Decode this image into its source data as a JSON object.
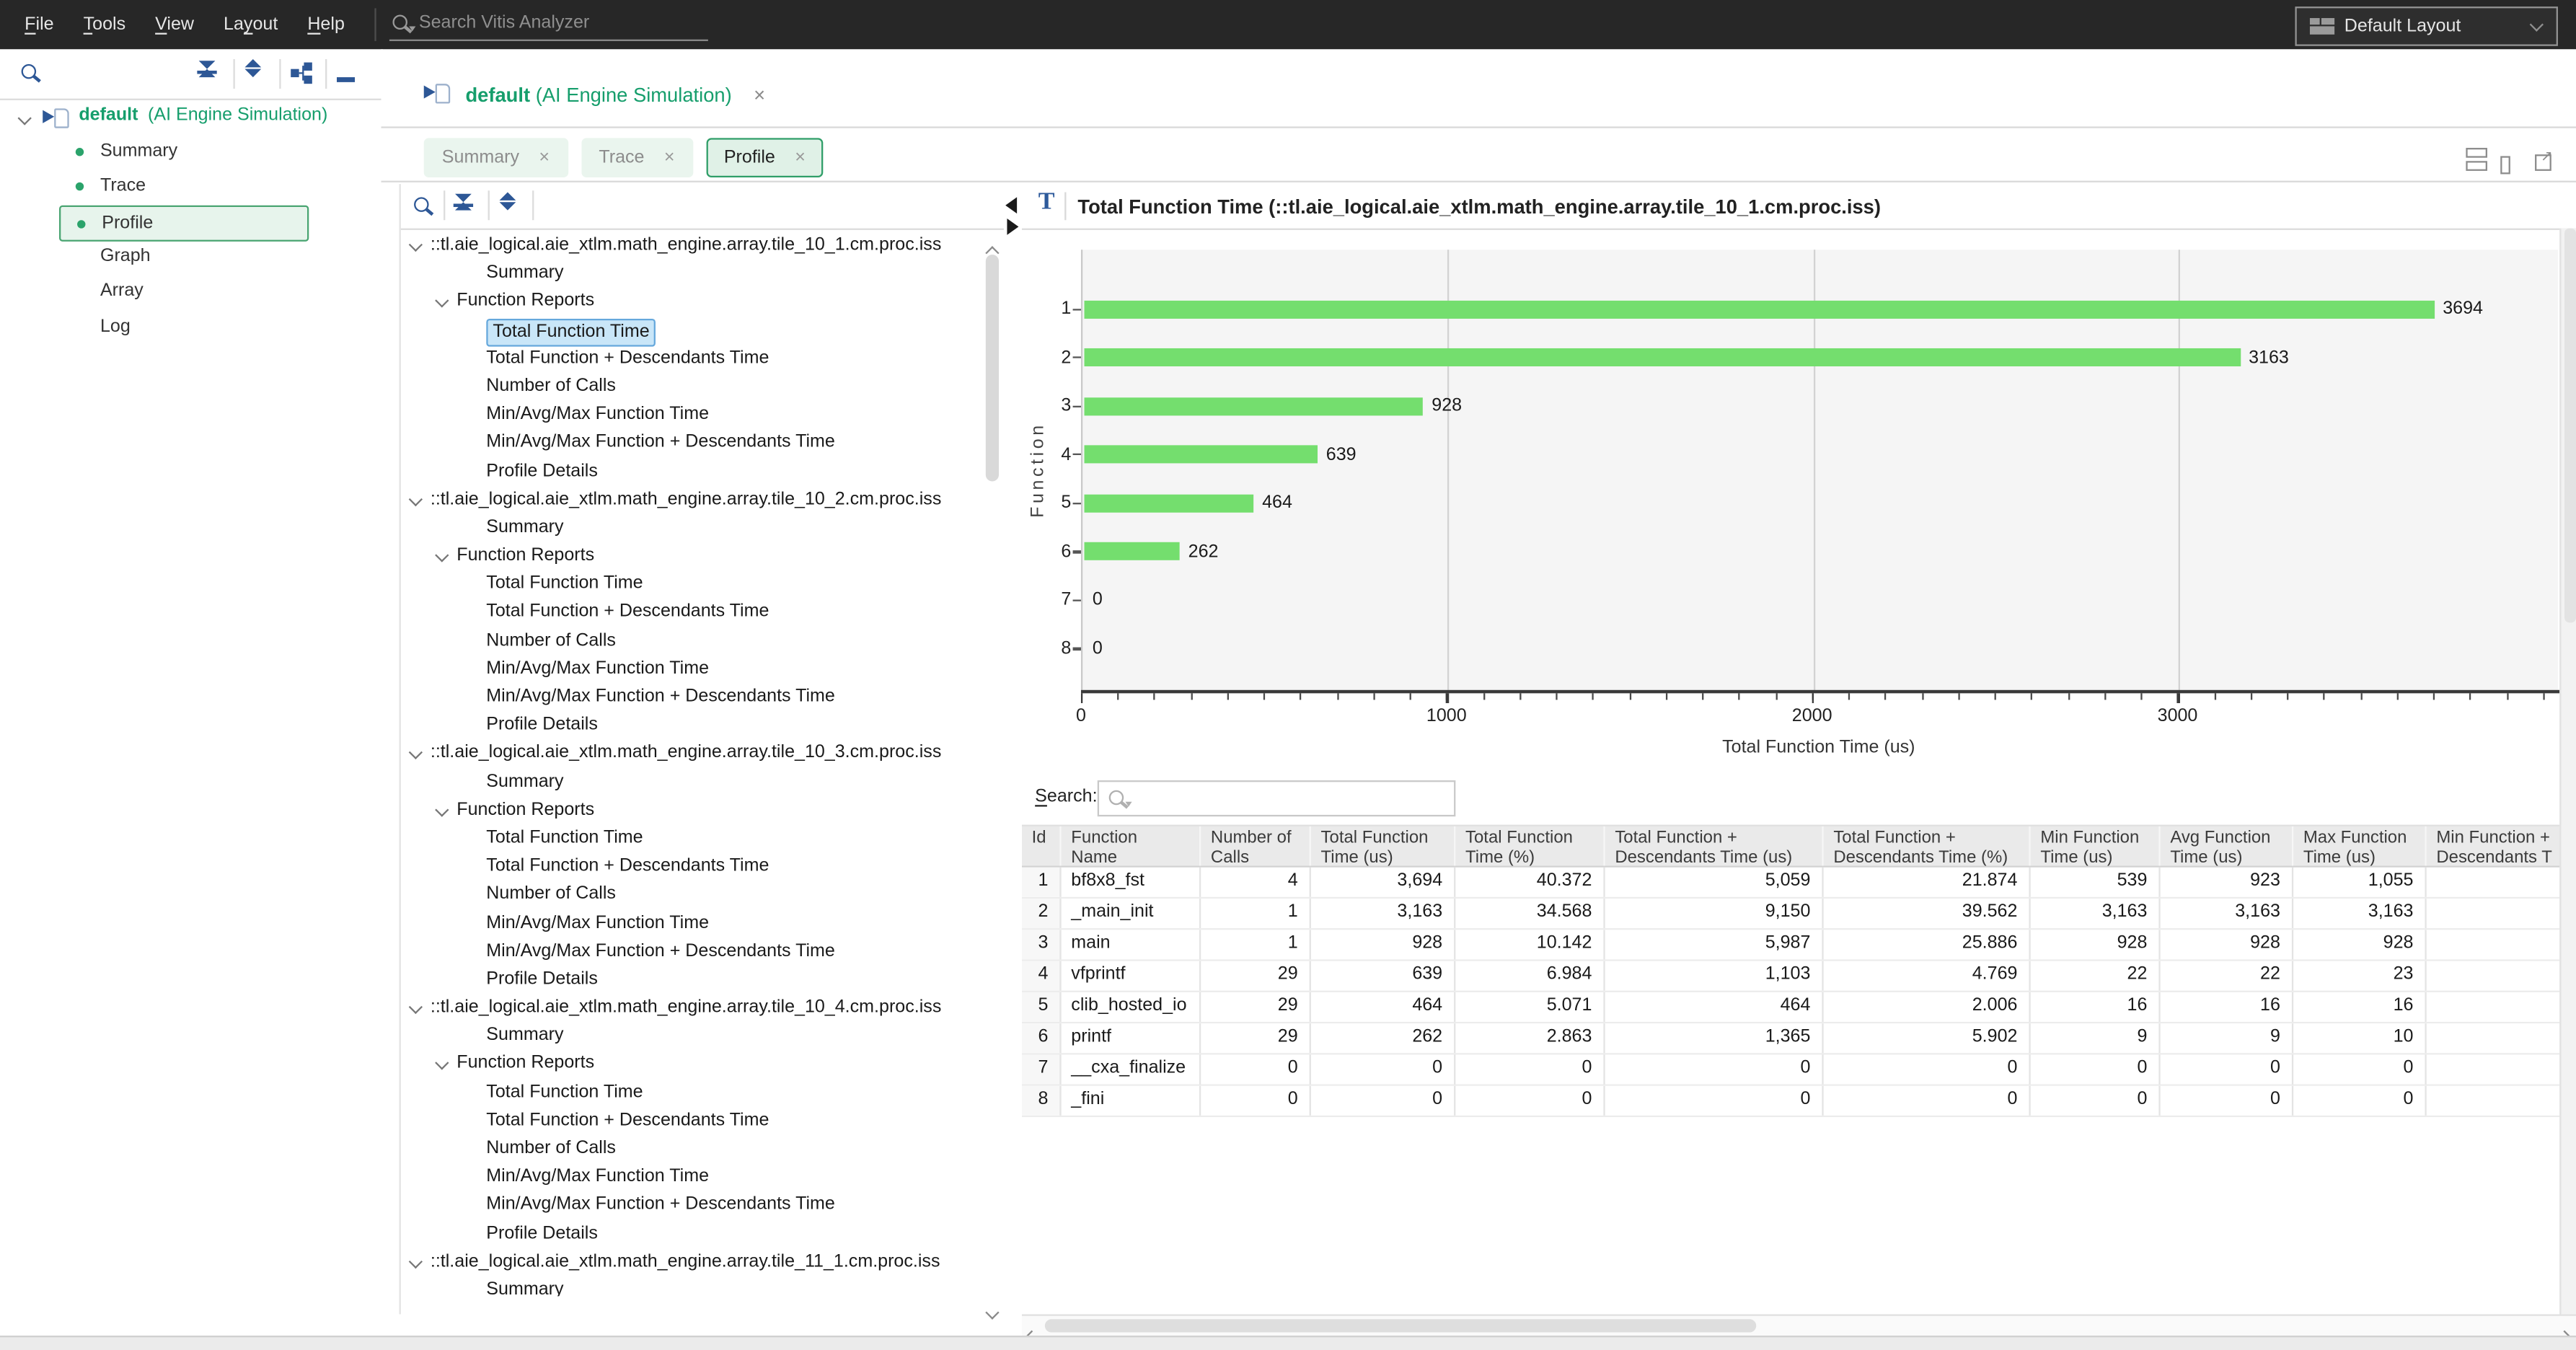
{
  "menu": {
    "items": [
      {
        "pre": "",
        "key": "F",
        "post": "ile"
      },
      {
        "pre": "",
        "key": "T",
        "post": "ools"
      },
      {
        "pre": "",
        "key": "V",
        "post": "iew"
      },
      {
        "pre": "La",
        "key": "y",
        "post": "out"
      },
      {
        "pre": "",
        "key": "H",
        "post": "elp"
      }
    ],
    "search_placeholder": "Search Vitis Analyzer",
    "layout_selector_label": "Default Layout"
  },
  "sidebar": {
    "project": {
      "name": "default",
      "type": "(AI Engine Simulation)"
    },
    "items": [
      {
        "label": "Summary",
        "bullet": true,
        "selected": false
      },
      {
        "label": "Trace",
        "bullet": true,
        "selected": false
      },
      {
        "label": "Profile",
        "bullet": true,
        "selected": true
      },
      {
        "label": "Graph",
        "bullet": false,
        "selected": false
      },
      {
        "label": "Array",
        "bullet": false,
        "selected": false
      },
      {
        "label": "Log",
        "bullet": false,
        "selected": false
      }
    ]
  },
  "workspace": {
    "tab": {
      "name": "default",
      "type": "(AI Engine Simulation)",
      "close_label": "×"
    },
    "subtabs": [
      {
        "label": "Summary",
        "active": false
      },
      {
        "label": "Trace",
        "active": false
      },
      {
        "label": "Profile",
        "active": true
      }
    ],
    "subtab_close_label": "×"
  },
  "tree_panel": {
    "summary_label": "Summary",
    "reports_label": "Function Reports",
    "report_items": [
      "Total Function Time",
      "Total Function + Descendants Time",
      "Number of Calls",
      "Min/Avg/Max Function Time",
      "Min/Avg/Max Function + Descendants Time",
      "Profile Details"
    ],
    "tiles": [
      {
        "name": "::tl.aie_logical.aie_xtlm.math_engine.array.tile_10_1.cm.proc.iss",
        "show_reports": true,
        "selected_report": "Total Function Time"
      },
      {
        "name": "::tl.aie_logical.aie_xtlm.math_engine.array.tile_10_2.cm.proc.iss",
        "show_reports": true,
        "selected_report": null
      },
      {
        "name": "::tl.aie_logical.aie_xtlm.math_engine.array.tile_10_3.cm.proc.iss",
        "show_reports": true,
        "selected_report": null
      },
      {
        "name": "::tl.aie_logical.aie_xtlm.math_engine.array.tile_10_4.cm.proc.iss",
        "show_reports": true,
        "selected_report": null
      },
      {
        "name": "::tl.aie_logical.aie_xtlm.math_engine.array.tile_11_1.cm.proc.iss",
        "show_reports": false,
        "selected_report": null
      }
    ]
  },
  "chart_panel": {
    "icon_letter": "T",
    "title": "Total Function Time (::tl.aie_logical.aie_xtlm.math_engine.array.tile_10_1.cm.proc.iss)"
  },
  "chart_data": {
    "type": "bar",
    "orientation": "horizontal",
    "categories": [
      "1",
      "2",
      "3",
      "4",
      "5",
      "6",
      "7",
      "8"
    ],
    "values": [
      3694,
      3163,
      928,
      639,
      464,
      262,
      0,
      0
    ],
    "xlabel": "Total Function Time (us)",
    "ylabel": "Function",
    "xlim": [
      0,
      4036
    ],
    "xticks": [
      0,
      1000,
      2000,
      3000
    ],
    "minor_tick_step": 100,
    "grid": "vertical",
    "bar_color": "#74de6e",
    "plot_bg": "#f5f5f5",
    "legend": "none"
  },
  "table": {
    "search_label": {
      "pre": "",
      "key": "S",
      "post": "earch:"
    },
    "search_value": "",
    "headers": [
      "Id",
      "Function\nName",
      "Number of\nCalls",
      "Total Function\nTime (us)",
      "Total Function\nTime (%)",
      "Total Function +\nDescendants Time (us)",
      "Total Function +\nDescendants Time (%)",
      "Min Function\nTime (us)",
      "Avg Function\nTime (us)",
      "Max Function\nTime (us)",
      "Min Function +\nDescendants T"
    ],
    "rows": [
      [
        "1",
        "bf8x8_fst",
        "4",
        "3,694",
        "40.372",
        "5,059",
        "21.874",
        "539",
        "923",
        "1,055",
        ""
      ],
      [
        "2",
        "_main_init",
        "1",
        "3,163",
        "34.568",
        "9,150",
        "39.562",
        "3,163",
        "3,163",
        "3,163",
        ""
      ],
      [
        "3",
        "main",
        "1",
        "928",
        "10.142",
        "5,987",
        "25.886",
        "928",
        "928",
        "928",
        ""
      ],
      [
        "4",
        "vfprintf",
        "29",
        "639",
        "6.984",
        "1,103",
        "4.769",
        "22",
        "22",
        "23",
        ""
      ],
      [
        "5",
        "clib_hosted_io",
        "29",
        "464",
        "5.071",
        "464",
        "2.006",
        "16",
        "16",
        "16",
        ""
      ],
      [
        "6",
        "printf",
        "29",
        "262",
        "2.863",
        "1,365",
        "5.902",
        "9",
        "9",
        "10",
        ""
      ],
      [
        "7",
        "__cxa_finalize",
        "0",
        "0",
        "0",
        "0",
        "0",
        "0",
        "0",
        "0",
        ""
      ],
      [
        "8",
        "_fini",
        "0",
        "0",
        "0",
        "0",
        "0",
        "0",
        "0",
        "0",
        ""
      ]
    ]
  }
}
